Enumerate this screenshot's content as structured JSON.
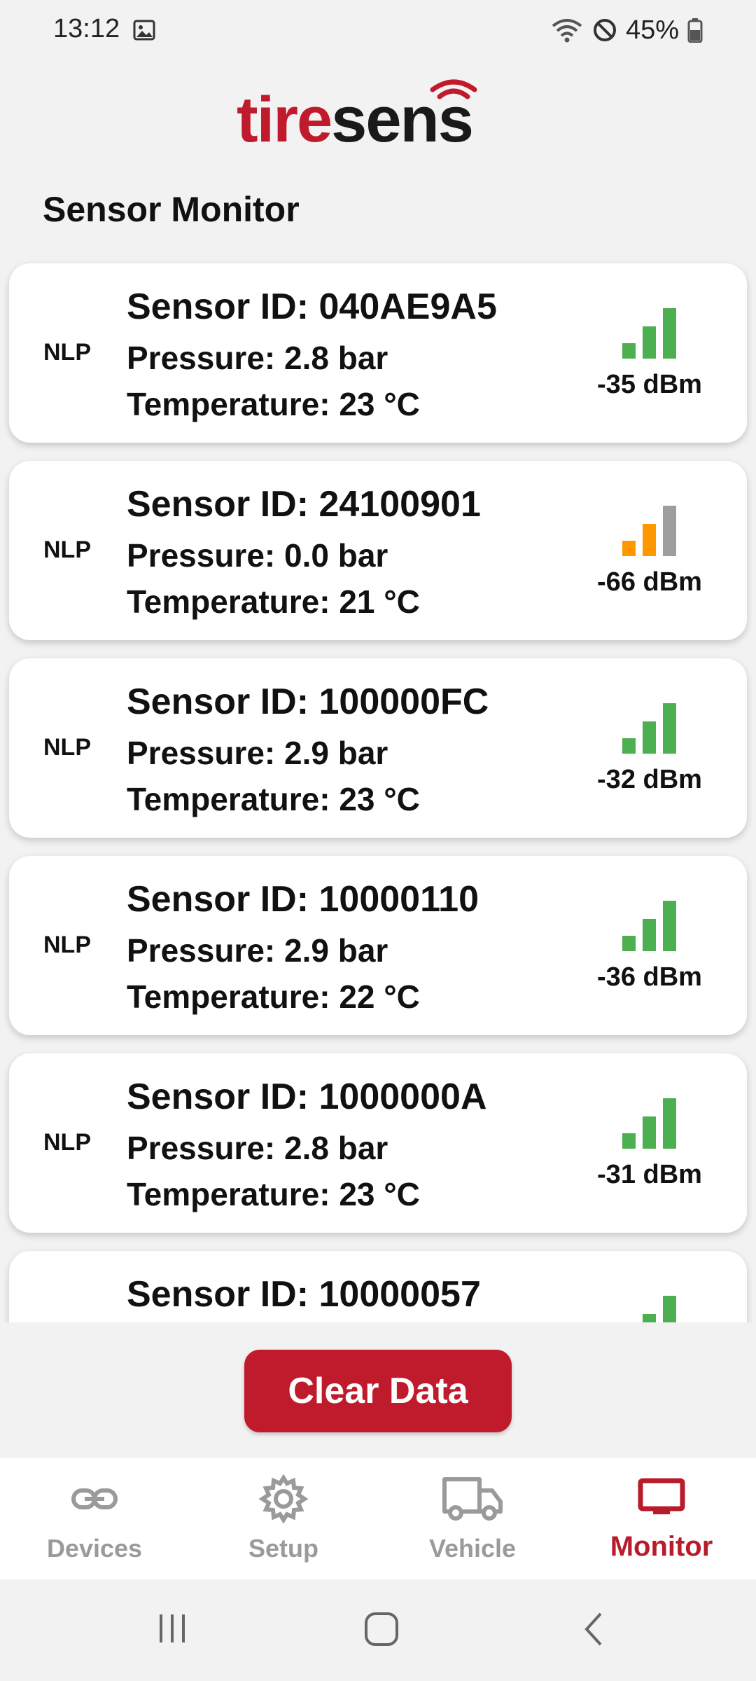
{
  "status_bar": {
    "time": "13:12",
    "battery": "45%"
  },
  "app": {
    "logo_red": "tire",
    "logo_dark": "sens",
    "brand_color": "#c01b2c"
  },
  "page": {
    "title": "Sensor Monitor"
  },
  "sensors": [
    {
      "type": "NLP",
      "id": "Sensor ID: 040AE9A5",
      "pressure": "Pressure: 2.8 bar",
      "temperature": "Temperature: 23 °C",
      "signal": "-35 dBm",
      "signal_level": "good"
    },
    {
      "type": "NLP",
      "id": "Sensor ID: 24100901",
      "pressure": "Pressure: 0.0 bar",
      "temperature": "Temperature: 21 °C",
      "signal": "-66 dBm",
      "signal_level": "fair"
    },
    {
      "type": "NLP",
      "id": "Sensor ID: 100000FC",
      "pressure": "Pressure: 2.9 bar",
      "temperature": "Temperature: 23 °C",
      "signal": "-32 dBm",
      "signal_level": "good"
    },
    {
      "type": "NLP",
      "id": "Sensor ID: 10000110",
      "pressure": "Pressure: 2.9 bar",
      "temperature": "Temperature: 22 °C",
      "signal": "-36 dBm",
      "signal_level": "good"
    },
    {
      "type": "NLP",
      "id": "Sensor ID: 1000000A",
      "pressure": "Pressure: 2.8 bar",
      "temperature": "Temperature: 23 °C",
      "signal": "-31 dBm",
      "signal_level": "good"
    },
    {
      "type": "",
      "id": "Sensor ID: 10000057",
      "pressure": "",
      "temperature": "",
      "signal": "",
      "signal_level": "good"
    }
  ],
  "signal_colors": {
    "good": "#4caf50",
    "fair": "#ff9800",
    "inactive": "#9e9e9e"
  },
  "actions": {
    "clear_label": "Clear Data"
  },
  "nav": [
    {
      "label": "Devices",
      "icon": "link-icon",
      "active": false
    },
    {
      "label": "Setup",
      "icon": "gear-icon",
      "active": false
    },
    {
      "label": "Vehicle",
      "icon": "truck-icon",
      "active": false
    },
    {
      "label": "Monitor",
      "icon": "monitor-icon",
      "active": true
    }
  ]
}
